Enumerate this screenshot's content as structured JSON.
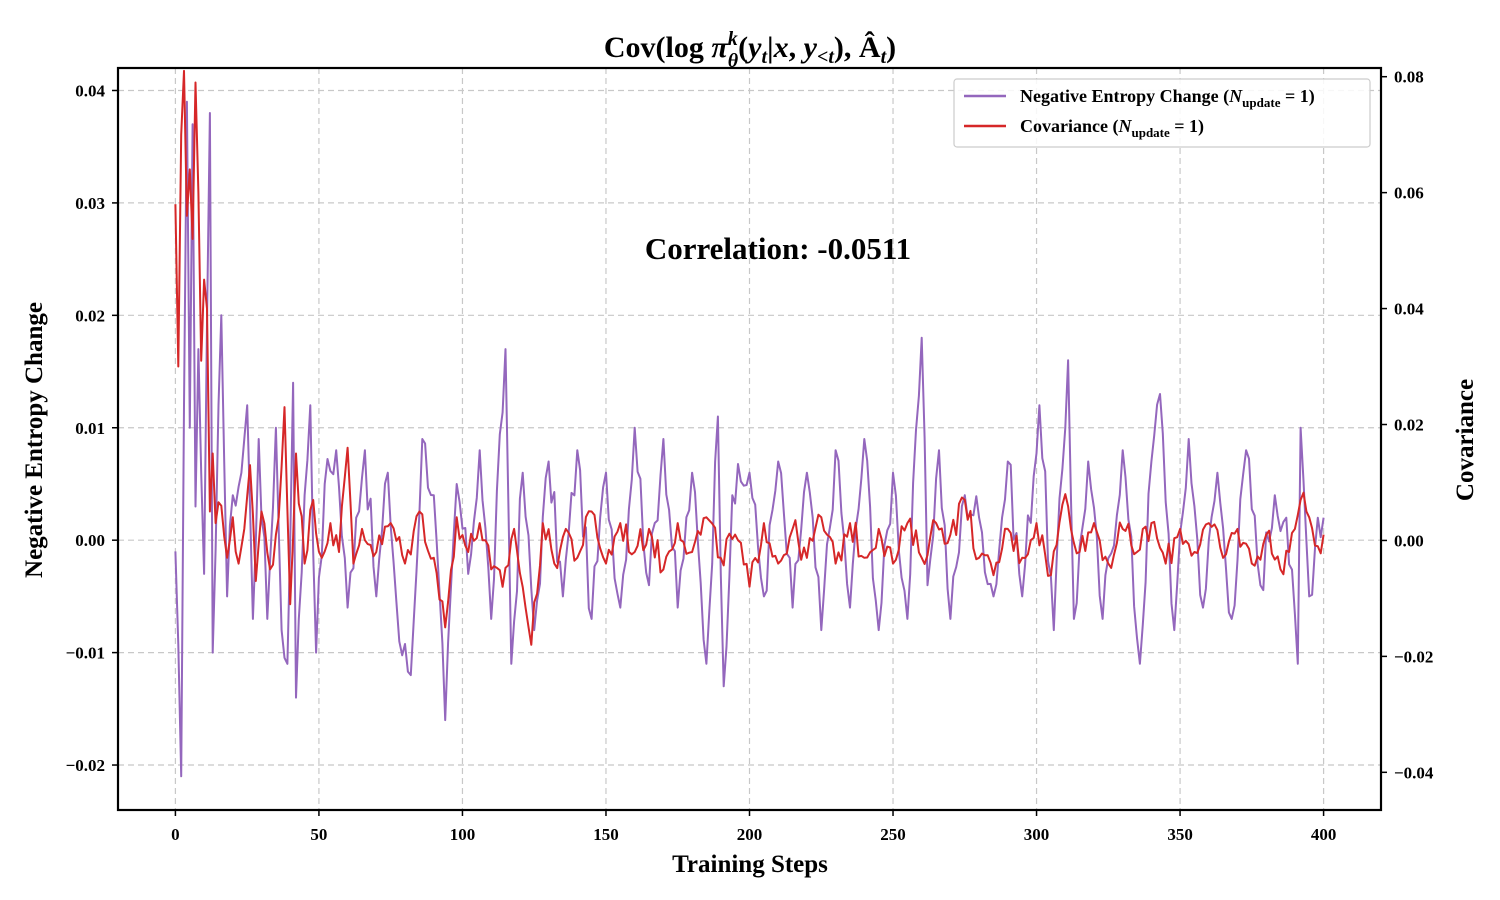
{
  "chart_data": {
    "type": "line",
    "title": "Cov(log π_θ^k(y_t|x, y_{<t}), Â_t)",
    "xlabel": "Training Steps",
    "ylabel_left": "Negative Entropy Change",
    "ylabel_right": "Covariance",
    "annotation": "Correlation: -0.0511",
    "xlim": [
      -20,
      420
    ],
    "ylim_left": [
      -0.024,
      0.042
    ],
    "ylim_right": [
      -0.0465,
      0.0815
    ],
    "x_ticks": [
      0,
      50,
      100,
      150,
      200,
      250,
      300,
      350,
      400
    ],
    "x_tick_labels": [
      "0",
      "50",
      "100",
      "150",
      "200",
      "250",
      "300",
      "350",
      "400"
    ],
    "y_left_ticks": [
      -0.02,
      -0.01,
      0.0,
      0.01,
      0.02,
      0.03,
      0.04
    ],
    "y_left_tick_labels": [
      "−0.02",
      "−0.01",
      "0.00",
      "0.01",
      "0.02",
      "0.03",
      "0.04"
    ],
    "y_right_ticks": [
      -0.04,
      -0.02,
      0.0,
      0.02,
      0.04,
      0.06,
      0.08
    ],
    "y_right_tick_labels": [
      "−0.04",
      "−0.02",
      "0.00",
      "0.02",
      "0.04",
      "0.06",
      "0.08"
    ],
    "grid": true,
    "legend_position": "top-right",
    "series": [
      {
        "name": "Negative Entropy Change (N_update = 1)",
        "axis": "left",
        "color": "#9467bd",
        "key_points": [
          [
            0,
            -0.001
          ],
          [
            2,
            -0.021
          ],
          [
            3,
            0.012
          ],
          [
            4,
            0.039
          ],
          [
            5,
            0.01
          ],
          [
            6,
            0.037
          ],
          [
            7,
            0.003
          ],
          [
            8,
            0.017
          ],
          [
            9,
            0.006
          ],
          [
            10,
            -0.003
          ],
          [
            12,
            0.038
          ],
          [
            13,
            -0.01
          ],
          [
            15,
            0.012
          ],
          [
            16,
            0.02
          ],
          [
            18,
            -0.005
          ],
          [
            20,
            0.004
          ],
          [
            23,
            0.006
          ],
          [
            25,
            0.012
          ],
          [
            27,
            -0.007
          ],
          [
            29,
            0.009
          ],
          [
            32,
            -0.007
          ],
          [
            35,
            0.01
          ],
          [
            37,
            -0.008
          ],
          [
            39,
            -0.011
          ],
          [
            41,
            0.014
          ],
          [
            42,
            -0.014
          ],
          [
            45,
            0.004
          ],
          [
            47,
            0.012
          ],
          [
            49,
            -0.01
          ],
          [
            52,
            0.005
          ],
          [
            56,
            0.008
          ],
          [
            60,
            -0.006
          ],
          [
            63,
            0.002
          ],
          [
            66,
            0.008
          ],
          [
            70,
            -0.005
          ],
          [
            74,
            0.006
          ],
          [
            78,
            -0.009
          ],
          [
            82,
            -0.012
          ],
          [
            86,
            0.009
          ],
          [
            90,
            0.004
          ],
          [
            94,
            -0.016
          ],
          [
            98,
            0.005
          ],
          [
            102,
            -0.003
          ],
          [
            106,
            0.008
          ],
          [
            110,
            -0.007
          ],
          [
            115,
            0.017
          ],
          [
            117,
            -0.011
          ],
          [
            121,
            0.006
          ],
          [
            125,
            -0.008
          ],
          [
            130,
            0.007
          ],
          [
            135,
            -0.005
          ],
          [
            140,
            0.008
          ],
          [
            145,
            -0.007
          ],
          [
            150,
            0.006
          ],
          [
            155,
            -0.006
          ],
          [
            160,
            0.01
          ],
          [
            165,
            -0.004
          ],
          [
            170,
            0.009
          ],
          [
            175,
            -0.006
          ],
          [
            180,
            0.006
          ],
          [
            185,
            -0.011
          ],
          [
            189,
            0.011
          ],
          [
            191,
            -0.013
          ],
          [
            194,
            0.004
          ],
          [
            200,
            0.006
          ],
          [
            205,
            -0.005
          ],
          [
            210,
            0.007
          ],
          [
            215,
            -0.006
          ],
          [
            220,
            0.006
          ],
          [
            225,
            -0.008
          ],
          [
            230,
            0.008
          ],
          [
            235,
            -0.006
          ],
          [
            240,
            0.009
          ],
          [
            245,
            -0.008
          ],
          [
            250,
            0.006
          ],
          [
            255,
            -0.007
          ],
          [
            260,
            0.018
          ],
          [
            262,
            -0.004
          ],
          [
            266,
            0.008
          ],
          [
            270,
            -0.007
          ],
          [
            275,
            0.004
          ],
          [
            280,
            0.002
          ],
          [
            285,
            -0.005
          ],
          [
            290,
            0.007
          ],
          [
            295,
            -0.005
          ],
          [
            301,
            0.012
          ],
          [
            306,
            -0.008
          ],
          [
            311,
            0.016
          ],
          [
            313,
            -0.007
          ],
          [
            318,
            0.007
          ],
          [
            323,
            -0.007
          ],
          [
            330,
            0.008
          ],
          [
            336,
            -0.011
          ],
          [
            340,
            0.007
          ],
          [
            343,
            0.013
          ],
          [
            348,
            -0.008
          ],
          [
            353,
            0.009
          ],
          [
            358,
            -0.006
          ],
          [
            363,
            0.006
          ],
          [
            368,
            -0.007
          ],
          [
            373,
            0.008
          ],
          [
            378,
            -0.004
          ],
          [
            383,
            0.004
          ],
          [
            387,
            0.002
          ],
          [
            391,
            -0.011
          ],
          [
            392,
            0.01
          ],
          [
            395,
            -0.005
          ],
          [
            398,
            0.002
          ],
          [
            400,
            0.002
          ]
        ]
      },
      {
        "name": "Covariance (N_update = 1)",
        "axis": "right",
        "color": "#d62728",
        "key_points": [
          [
            0,
            0.058
          ],
          [
            1,
            0.03
          ],
          [
            2,
            0.07
          ],
          [
            3,
            0.081
          ],
          [
            4,
            0.056
          ],
          [
            5,
            0.064
          ],
          [
            6,
            0.052
          ],
          [
            7,
            0.079
          ],
          [
            8,
            0.06
          ],
          [
            9,
            0.031
          ],
          [
            10,
            0.045
          ],
          [
            11,
            0.04
          ],
          [
            12,
            0.005
          ],
          [
            13,
            0.015
          ],
          [
            14,
            0.003
          ],
          [
            16,
            0.006
          ],
          [
            18,
            -0.003
          ],
          [
            20,
            0.004
          ],
          [
            22,
            -0.004
          ],
          [
            24,
            0.002
          ],
          [
            26,
            0.013
          ],
          [
            28,
            -0.007
          ],
          [
            30,
            0.005
          ],
          [
            33,
            -0.005
          ],
          [
            36,
            0.004
          ],
          [
            38,
            0.023
          ],
          [
            40,
            -0.011
          ],
          [
            42,
            0.015
          ],
          [
            45,
            -0.004
          ],
          [
            48,
            0.007
          ],
          [
            51,
            -0.003
          ],
          [
            54,
            0.003
          ],
          [
            57,
            -0.002
          ],
          [
            60,
            0.016
          ],
          [
            62,
            -0.004
          ],
          [
            65,
            0.002
          ],
          [
            70,
            -0.002
          ],
          [
            75,
            0.003
          ],
          [
            80,
            -0.004
          ],
          [
            85,
            0.005
          ],
          [
            90,
            -0.003
          ],
          [
            94,
            -0.015
          ],
          [
            98,
            0.004
          ],
          [
            102,
            -0.002
          ],
          [
            106,
            0.003
          ],
          [
            110,
            -0.005
          ],
          [
            114,
            -0.008
          ],
          [
            118,
            0.002
          ],
          [
            124,
            -0.018
          ],
          [
            128,
            0.003
          ],
          [
            132,
            -0.004
          ],
          [
            136,
            0.002
          ],
          [
            140,
            -0.003
          ],
          [
            145,
            0.005
          ],
          [
            150,
            -0.004
          ],
          [
            155,
            0.003
          ],
          [
            160,
            -0.002
          ],
          [
            165,
            0.002
          ],
          [
            170,
            -0.005
          ],
          [
            175,
            0.003
          ],
          [
            180,
            -0.002
          ],
          [
            185,
            0.004
          ],
          [
            190,
            -0.003
          ],
          [
            195,
            0.001
          ],
          [
            200,
            -0.008
          ],
          [
            205,
            0.003
          ],
          [
            210,
            -0.004
          ],
          [
            215,
            0.002
          ],
          [
            220,
            -0.003
          ],
          [
            225,
            0.004
          ],
          [
            230,
            -0.004
          ],
          [
            235,
            0.003
          ],
          [
            240,
            -0.003
          ],
          [
            245,
            0.002
          ],
          [
            250,
            -0.004
          ],
          [
            255,
            0.003
          ],
          [
            260,
            -0.003
          ],
          [
            265,
            0.003
          ],
          [
            270,
            0.001
          ],
          [
            275,
            0.007
          ],
          [
            280,
            -0.003
          ],
          [
            285,
            -0.006
          ],
          [
            290,
            0.002
          ],
          [
            295,
            -0.003
          ],
          [
            300,
            0.003
          ],
          [
            305,
            -0.006
          ],
          [
            310,
            0.008
          ],
          [
            315,
            -0.002
          ],
          [
            320,
            0.003
          ],
          [
            325,
            -0.004
          ],
          [
            330,
            0.002
          ],
          [
            335,
            -0.002
          ],
          [
            340,
            0.003
          ],
          [
            345,
            -0.004
          ],
          [
            350,
            0.002
          ],
          [
            355,
            -0.002
          ],
          [
            360,
            0.003
          ],
          [
            365,
            -0.003
          ],
          [
            370,
            0.002
          ],
          [
            375,
            -0.004
          ],
          [
            380,
            0.001
          ],
          [
            385,
            -0.005
          ],
          [
            390,
            0.002
          ],
          [
            392,
            0.007
          ],
          [
            395,
            0.004
          ],
          [
            398,
            -0.001
          ],
          [
            400,
            0.001
          ]
        ]
      }
    ]
  }
}
